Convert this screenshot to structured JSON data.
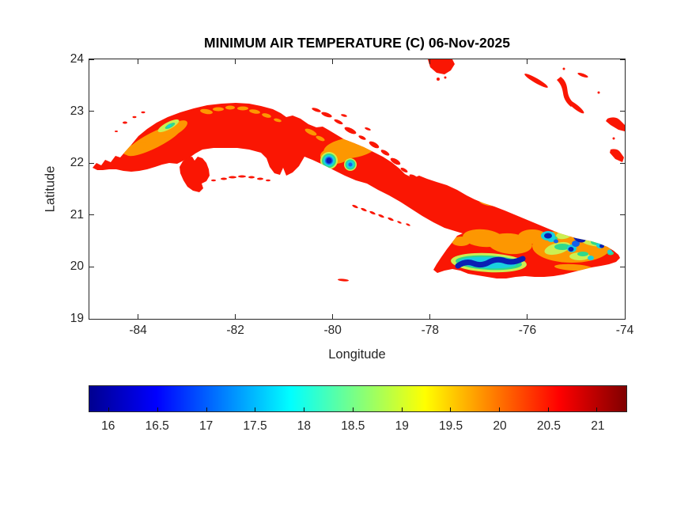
{
  "figure": {
    "title": "MINIMUM AIR TEMPERATURE (C) 06-Nov-2025",
    "x_axis": {
      "label": "Longitude",
      "ticks": [
        {
          "label": "-84",
          "pos": 9.09
        },
        {
          "label": "-82",
          "pos": 27.27
        },
        {
          "label": "-80",
          "pos": 45.45
        },
        {
          "label": "-78",
          "pos": 63.64
        },
        {
          "label": "-76",
          "pos": 81.82
        },
        {
          "label": "-74",
          "pos": 100
        }
      ]
    },
    "y_axis": {
      "label": "Latitude",
      "ticks": [
        {
          "label": "24",
          "pos": 0
        },
        {
          "label": "23",
          "pos": 20
        },
        {
          "label": "22",
          "pos": 40
        },
        {
          "label": "21",
          "pos": 60
        },
        {
          "label": "20",
          "pos": 80
        },
        {
          "label": "19",
          "pos": 100
        }
      ]
    },
    "colorbar": {
      "ticks": [
        {
          "label": "16",
          "pos": 3.64
        },
        {
          "label": "16.5",
          "pos": 12.73
        },
        {
          "label": "17",
          "pos": 21.82
        },
        {
          "label": "17.5",
          "pos": 30.91
        },
        {
          "label": "18",
          "pos": 40.0
        },
        {
          "label": "18.5",
          "pos": 49.09
        },
        {
          "label": "19",
          "pos": 58.18
        },
        {
          "label": "19.5",
          "pos": 67.27
        },
        {
          "label": "20",
          "pos": 76.36
        },
        {
          "label": "20.5",
          "pos": 85.45
        },
        {
          "label": "21",
          "pos": 94.55
        }
      ]
    }
  },
  "chart_data": {
    "type": "heatmap",
    "title": "MINIMUM AIR TEMPERATURE (C) 06-Nov-2025",
    "xlabel": "Longitude",
    "ylabel": "Latitude",
    "xlim": [
      -85,
      -74
    ],
    "ylim": [
      19,
      24
    ],
    "xticks": [
      -84,
      -82,
      -80,
      -78,
      -76,
      -74
    ],
    "yticks": [
      19,
      20,
      21,
      22,
      23,
      24
    ],
    "grid": false,
    "colormap": "jet",
    "colorbar": {
      "orientation": "horizontal",
      "range_min": 15.8,
      "range_max": 21.3,
      "tick_values": [
        16,
        16.5,
        17,
        17.5,
        18,
        18.5,
        19,
        19.5,
        20,
        20.5,
        21
      ],
      "units": "C"
    },
    "geography": "Cuba with Isla de la Juventud, offshore cays, Bahamas fragments and Grand Cayman; sea masked white",
    "values_by_region": [
      {
        "area": "most lowland Cuba and all small islets",
        "min_air_temp_c": "~21 (solid red)"
      },
      {
        "area": "western range near lon -83.6, lat 22.5",
        "min_air_temp_c": "18-20.5 (orange band, yellow-green core)"
      },
      {
        "area": "north-central ridge lon -82.6 to -81.5, lat ~23",
        "min_air_temp_c": "~20.3 (small orange patches)"
      },
      {
        "area": "central mountains lon -80.3 to -79.0, lat ~21.9",
        "min_air_temp_c": "16-20.5 (two blue-core blobs with cyan/green/yellow rings on orange)"
      },
      {
        "area": "southeast coastal range lon -77.4 to -76.1, lat ~20.05",
        "min_air_temp_c": "16-19 (navy band with cyan/green/yellow fringe)"
      },
      {
        "area": "eastern massif lon -75.7 to -74.2, lat 20.2-20.6",
        "min_air_temp_c": "16-20.5 (mottled navy/cyan/green on orange)"
      }
    ]
  }
}
